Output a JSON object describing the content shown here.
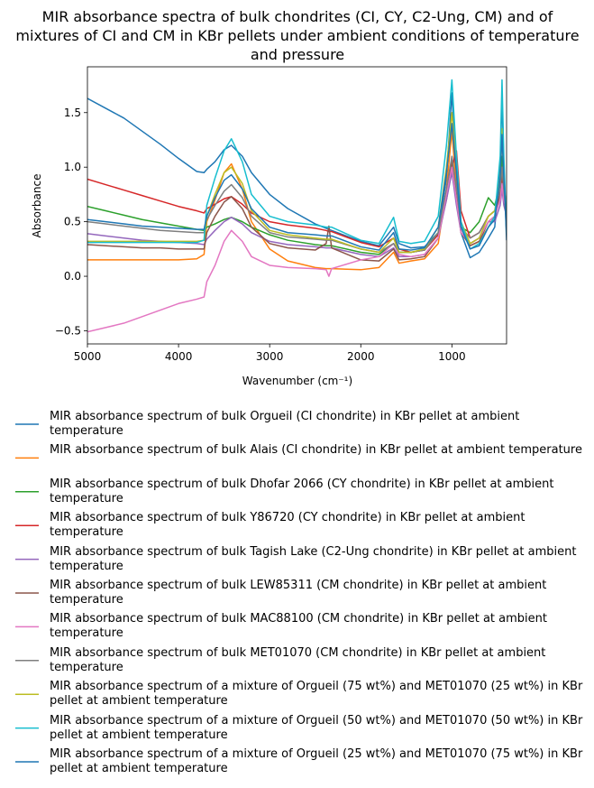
{
  "chart_data": {
    "type": "line",
    "title": "MIR absorbance spectra of bulk chondrites (CI, CY, C2-Ung, CM) and of mixtures of CI and CM in KBr pellets under ambient conditions of temperature and pressure",
    "xlabel": "Wavenumber (cm⁻¹)",
    "ylabel": "Absorbance",
    "xlim": [
      5000,
      400
    ],
    "ylim": [
      -0.62,
      1.92
    ],
    "xticks": [
      5000,
      4000,
      3000,
      2000,
      1000
    ],
    "yticks": [
      {
        "value": -0.5,
        "label": "−0.5"
      },
      {
        "value": 0,
        "label": "0.0"
      },
      0.5,
      {
        "value": 1,
        "label": "1.0"
      },
      1.5
    ],
    "x": [
      5000,
      4800,
      4600,
      4400,
      4200,
      4000,
      3800,
      3720,
      3690,
      3600,
      3500,
      3420,
      3300,
      3200,
      3000,
      2800,
      2500,
      2380,
      2350,
      2320,
      2000,
      1800,
      1640,
      1580,
      1450,
      1300,
      1150,
      1060,
      1000,
      950,
      900,
      800,
      700,
      600,
      530,
      470,
      450,
      430,
      400
    ],
    "series": [
      {
        "name": "MIR absorbance spectrum of bulk Orgueil (CI chondrite) in KBr pellet at ambient temperature",
        "color": "#1f77b4",
        "values": [
          1.63,
          1.54,
          1.45,
          1.33,
          1.21,
          1.08,
          0.96,
          0.95,
          0.98,
          1.05,
          1.16,
          1.2,
          1.1,
          0.95,
          0.75,
          0.62,
          0.48,
          0.44,
          0.43,
          0.42,
          0.32,
          0.28,
          0.45,
          0.3,
          0.26,
          0.27,
          0.4,
          0.9,
          1.68,
          0.9,
          0.4,
          0.17,
          0.22,
          0.35,
          0.45,
          1.0,
          1.65,
          1.0,
          0.33
        ]
      },
      {
        "name": "MIR absorbance spectrum of bulk Alais (CI chondrite) in KBr pellet at ambient temperature",
        "color": "#ff7f0e",
        "values": [
          0.15,
          0.15,
          0.15,
          0.15,
          0.15,
          0.15,
          0.16,
          0.2,
          0.5,
          0.7,
          0.95,
          1.03,
          0.8,
          0.5,
          0.25,
          0.14,
          0.08,
          0.07,
          0.07,
          0.07,
          0.06,
          0.08,
          0.22,
          0.12,
          0.14,
          0.16,
          0.3,
          0.8,
          1.33,
          0.8,
          0.4,
          0.28,
          0.32,
          0.45,
          0.55,
          0.9,
          1.35,
          0.9,
          0.55
        ]
      },
      {
        "name": "MIR absorbance spectrum of bulk Dhofar 2066 (CY chondrite) in KBr pellet at ambient temperature",
        "color": "#2ca02c",
        "values": [
          0.64,
          0.6,
          0.56,
          0.52,
          0.49,
          0.46,
          0.43,
          0.42,
          0.45,
          0.48,
          0.52,
          0.54,
          0.5,
          0.45,
          0.38,
          0.33,
          0.29,
          0.28,
          0.28,
          0.28,
          0.22,
          0.2,
          0.3,
          0.22,
          0.22,
          0.24,
          0.4,
          0.75,
          0.95,
          0.7,
          0.45,
          0.4,
          0.5,
          0.72,
          0.65,
          0.85,
          1.1,
          0.85,
          0.6
        ]
      },
      {
        "name": "MIR absorbance spectrum of bulk Y86720 (CY chondrite) in KBr pellet at ambient temperature",
        "color": "#d62728",
        "values": [
          0.89,
          0.84,
          0.79,
          0.74,
          0.69,
          0.64,
          0.6,
          0.58,
          0.62,
          0.66,
          0.71,
          0.73,
          0.66,
          0.58,
          0.5,
          0.47,
          0.44,
          0.42,
          0.41,
          0.41,
          0.31,
          0.27,
          0.35,
          0.25,
          0.22,
          0.24,
          0.38,
          0.7,
          1.0,
          1.15,
          0.6,
          0.35,
          0.4,
          0.55,
          0.6,
          0.75,
          0.9,
          0.75,
          0.6
        ]
      },
      {
        "name": "MIR absorbance spectrum of bulk Tagish Lake (C2-Ung chondrite) in KBr pellet at ambient temperature",
        "color": "#9467bd",
        "values": [
          0.39,
          0.37,
          0.35,
          0.33,
          0.32,
          0.31,
          0.3,
          0.29,
          0.34,
          0.42,
          0.5,
          0.54,
          0.48,
          0.4,
          0.32,
          0.29,
          0.27,
          0.26,
          0.26,
          0.26,
          0.2,
          0.18,
          0.26,
          0.18,
          0.18,
          0.2,
          0.35,
          0.7,
          0.95,
          0.65,
          0.4,
          0.3,
          0.35,
          0.5,
          0.5,
          0.65,
          0.8,
          0.65,
          0.55
        ]
      },
      {
        "name": "MIR absorbance spectrum of bulk LEW85311 (CM chondrite) in KBr pellet at ambient temperature",
        "color": "#8c564b",
        "values": [
          0.29,
          0.28,
          0.27,
          0.26,
          0.26,
          0.25,
          0.25,
          0.25,
          0.4,
          0.55,
          0.68,
          0.73,
          0.62,
          0.45,
          0.3,
          0.26,
          0.24,
          0.3,
          0.46,
          0.26,
          0.15,
          0.14,
          0.25,
          0.15,
          0.16,
          0.18,
          0.35,
          0.75,
          1.05,
          0.75,
          0.4,
          0.28,
          0.32,
          0.5,
          0.55,
          0.75,
          1.0,
          0.75,
          0.5
        ]
      },
      {
        "name": "MIR absorbance spectrum of bulk MAC88100 (CM chondrite) in KBr pellet at ambient temperature",
        "color": "#e377c2",
        "values": [
          -0.51,
          -0.47,
          -0.43,
          -0.37,
          -0.31,
          -0.25,
          -0.21,
          -0.19,
          -0.05,
          0.1,
          0.32,
          0.42,
          0.32,
          0.18,
          0.1,
          0.08,
          0.07,
          0.06,
          0.0,
          0.07,
          0.15,
          0.18,
          0.3,
          0.2,
          0.18,
          0.2,
          0.35,
          0.75,
          1.0,
          0.7,
          0.4,
          0.3,
          0.35,
          0.5,
          0.55,
          0.7,
          0.85,
          0.7,
          0.6
        ]
      },
      {
        "name": "MIR absorbance spectrum of bulk MET01070 (CM chondrite) in KBr pellet at ambient temperature",
        "color": "#7f7f7f",
        "values": [
          0.5,
          0.48,
          0.46,
          0.44,
          0.42,
          0.41,
          0.4,
          0.4,
          0.52,
          0.65,
          0.78,
          0.84,
          0.72,
          0.55,
          0.4,
          0.36,
          0.34,
          0.33,
          0.33,
          0.33,
          0.25,
          0.22,
          0.3,
          0.22,
          0.22,
          0.24,
          0.4,
          0.8,
          1.1,
          0.8,
          0.45,
          0.35,
          0.4,
          0.55,
          0.6,
          0.8,
          1.0,
          0.8,
          0.5
        ]
      },
      {
        "name": "MIR absorbance spectrum of a mixture of Orgueil (75 wt%) and MET01070 (25 wt%) in KBr pellet at ambient temperature",
        "color": "#bcbd22",
        "values": [
          0.32,
          0.32,
          0.32,
          0.32,
          0.32,
          0.32,
          0.32,
          0.33,
          0.55,
          0.75,
          0.95,
          1.0,
          0.85,
          0.6,
          0.42,
          0.38,
          0.35,
          0.34,
          0.34,
          0.34,
          0.25,
          0.22,
          0.35,
          0.22,
          0.22,
          0.25,
          0.45,
          1.0,
          1.5,
          1.0,
          0.5,
          0.3,
          0.35,
          0.55,
          0.6,
          0.9,
          1.35,
          0.9,
          0.5
        ]
      },
      {
        "name": "MIR absorbance spectrum of a mixture of Orgueil (50 wt%) and MET01070 (50 wt%) in KBr pellet at ambient temperature",
        "color": "#17becf",
        "values": [
          0.31,
          0.31,
          0.31,
          0.31,
          0.31,
          0.31,
          0.31,
          0.33,
          0.65,
          0.9,
          1.15,
          1.26,
          1.05,
          0.75,
          0.55,
          0.5,
          0.47,
          0.45,
          0.45,
          0.45,
          0.33,
          0.3,
          0.54,
          0.32,
          0.3,
          0.32,
          0.55,
          1.2,
          1.8,
          1.1,
          0.5,
          0.25,
          0.3,
          0.45,
          0.55,
          1.1,
          1.8,
          1.1,
          0.4
        ]
      },
      {
        "name": "MIR absorbance spectrum of a mixture of Orgueil (25 wt%) and MET01070 (75 wt%) in KBr pellet at ambient temperature",
        "color": "#1f77b4",
        "values": [
          0.52,
          0.5,
          0.48,
          0.46,
          0.45,
          0.44,
          0.43,
          0.43,
          0.55,
          0.72,
          0.88,
          0.93,
          0.8,
          0.62,
          0.45,
          0.4,
          0.38,
          0.37,
          0.37,
          0.37,
          0.27,
          0.24,
          0.4,
          0.25,
          0.24,
          0.26,
          0.45,
          0.95,
          1.4,
          0.95,
          0.45,
          0.25,
          0.28,
          0.45,
          0.52,
          0.9,
          1.3,
          0.9,
          0.4
        ]
      }
    ]
  }
}
